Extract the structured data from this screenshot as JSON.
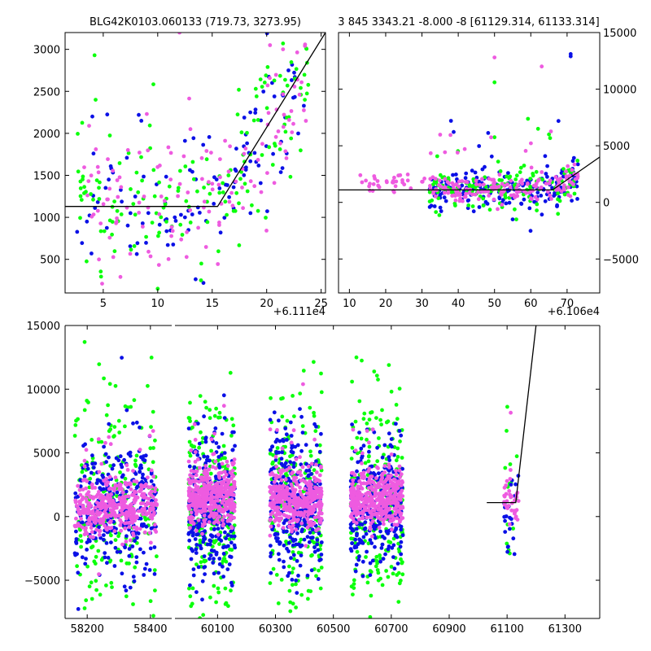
{
  "colors": {
    "blue": "#0a10e6",
    "green": "#0cff0c",
    "pink": "#ee5be0",
    "line": "#000000"
  },
  "chart_data": [
    {
      "id": "top-left",
      "type": "scatter",
      "title": "BLG42K0103.060133 (719.73, 3273.95)",
      "xlim": [
        1.5,
        25.4
      ],
      "ylim": [
        100,
        3200
      ],
      "xticks": [
        5,
        10,
        15,
        20,
        25
      ],
      "yticks": [
        500,
        1000,
        1500,
        2000,
        2500,
        3000
      ],
      "yaxis_side": "left",
      "offset_label": "+6.111e4",
      "model_line": {
        "x": [
          1.5,
          15.5,
          25.4
        ],
        "y": [
          1130,
          1130,
          3200
        ]
      },
      "series": [
        {
          "name": "blue",
          "color_key": "blue",
          "approx_count": 110,
          "sample_points": [
            [
              3.5,
              950
            ],
            [
              4,
              2200
            ],
            [
              7.5,
              1050
            ],
            [
              8.5,
              2150
            ],
            [
              12.5,
              1000
            ],
            [
              18.5,
              2250
            ],
            [
              20.5,
              2600
            ],
            [
              21.5,
              2450
            ],
            [
              22,
              2750
            ]
          ]
        },
        {
          "name": "green",
          "color_key": "green",
          "approx_count": 150,
          "sample_points": [
            [
              4.2,
              2930
            ],
            [
              4.3,
              2400
            ],
            [
              10,
              150
            ],
            [
              14,
              450
            ],
            [
              16.5,
              1500
            ],
            [
              19,
              2530
            ],
            [
              21.5,
              3070
            ],
            [
              23.5,
              2400
            ]
          ]
        },
        {
          "name": "pink",
          "color_key": "pink",
          "approx_count": 130,
          "sample_points": [
            [
              3.7,
              2090
            ],
            [
              4.5,
              1600
            ],
            [
              9,
              2230
            ],
            [
              12,
              3200
            ],
            [
              13,
              2050
            ],
            [
              15,
              1400
            ],
            [
              19.5,
              1300
            ],
            [
              21.5,
              3000
            ]
          ]
        }
      ]
    },
    {
      "id": "top-right",
      "type": "scatter",
      "title": "3 845 3343.21 -8.000 -8 [61129.314, 61133.314]",
      "xlim": [
        7,
        79
      ],
      "ylim": [
        -8000,
        15000
      ],
      "xticks": [
        10,
        20,
        30,
        40,
        50,
        60,
        70
      ],
      "yticks": [
        -5000,
        0,
        5000,
        10000,
        15000
      ],
      "yaxis_side": "right",
      "offset_label": "+6.106e4",
      "model_line": {
        "x": [
          7,
          66,
          79
        ],
        "y": [
          1100,
          1100,
          4000
        ]
      },
      "series": [
        {
          "name": "blue",
          "color_key": "blue",
          "approx_count": 200,
          "sample_points": [
            [
              38,
              7200
            ],
            [
              71,
              13100
            ],
            [
              71,
              12900
            ],
            [
              55,
              -1500
            ],
            [
              72,
              2000
            ]
          ]
        },
        {
          "name": "green",
          "color_key": "green",
          "approx_count": 150,
          "sample_points": [
            [
              50,
              10600
            ],
            [
              51,
              3600
            ],
            [
              56,
              -1500
            ],
            [
              62,
              6500
            ],
            [
              65,
              6000
            ]
          ]
        },
        {
          "name": "pink",
          "color_key": "pink",
          "approx_count": 200,
          "sample_points": [
            [
              13,
              2400
            ],
            [
              17,
              2100
            ],
            [
              24,
              2400
            ],
            [
              50,
              12800
            ],
            [
              63,
              12000
            ],
            [
              72,
              2500
            ]
          ]
        }
      ]
    },
    {
      "id": "bottom",
      "type": "scatter",
      "title": "",
      "xlim": [
        58130,
        61420
      ],
      "ylim": [
        -8000,
        15000
      ],
      "xticks": [
        58200,
        58400,
        60100,
        60300,
        60500,
        60700,
        60900,
        61100,
        61300
      ],
      "yticks": [
        -5000,
        0,
        5000,
        10000,
        15000
      ],
      "yaxis_side": "left",
      "axis_break_between": [
        58400,
        60100
      ],
      "model_line": {
        "x": [
          61030,
          61130,
          61200
        ],
        "y": [
          1100,
          1100,
          15000
        ]
      },
      "clusters": [
        {
          "range": [
            58160,
            58420
          ],
          "core": [
            -500,
            2000
          ]
        },
        {
          "range": [
            60000,
            60160
          ],
          "core": [
            500,
            2800
          ]
        },
        {
          "range": [
            60280,
            60460
          ],
          "core": [
            200,
            2500
          ]
        },
        {
          "range": [
            60560,
            60740
          ],
          "core": [
            200,
            2500
          ]
        },
        {
          "range": [
            61090,
            61140
          ],
          "core": [
            600,
            1800
          ]
        }
      ],
      "series": [
        {
          "name": "blue",
          "color_key": "blue",
          "approx_count": 1200
        },
        {
          "name": "green",
          "color_key": "green",
          "approx_count": 900
        },
        {
          "name": "pink",
          "color_key": "pink",
          "approx_count": 1600
        }
      ]
    }
  ]
}
